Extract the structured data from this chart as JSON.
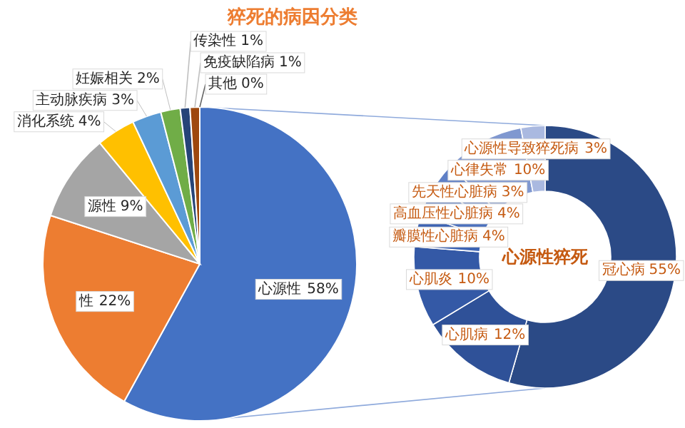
{
  "chart_data": [
    {
      "type": "pie",
      "title": "猝死的病因分类",
      "categories": [
        "心源性",
        "性",
        "源性",
        "消化系统",
        "主动脉疾病",
        "妊娠相关",
        "传染性",
        "免疫缺陷病",
        "其他"
      ],
      "values": [
        58,
        22,
        9,
        4,
        3,
        2,
        1,
        1,
        0
      ],
      "value_labels": [
        "58%",
        "22%",
        "9%",
        "4%",
        "3%",
        "2%",
        "1%",
        "1%",
        "0%"
      ],
      "colors": [
        "#4472c4",
        "#ed7d31",
        "#a5a5a5",
        "#ffc000",
        "#5b9bd5",
        "#70ad47",
        "#264478",
        "#9e480e",
        "#636363"
      ]
    },
    {
      "type": "donut",
      "title": "心源性猝死",
      "categories": [
        "冠心病",
        "心肌病",
        "心肌炎",
        "瓣膜性心脏病",
        "高血压性心脏病",
        "先天性心脏病",
        "心律失常",
        "心源性导致猝死病"
      ],
      "values": [
        55,
        12,
        10,
        4,
        4,
        3,
        10,
        3
      ],
      "value_labels": [
        "55%",
        "12%",
        "10%",
        "4%",
        "4%",
        "3%",
        "10%",
        "3%"
      ],
      "colors": [
        "#2b4a86",
        "#2f5198",
        "#3459a6",
        "#3c63b3",
        "#4a70bd",
        "#5f80c6",
        "#8098d0",
        "#aab9e0"
      ]
    }
  ]
}
